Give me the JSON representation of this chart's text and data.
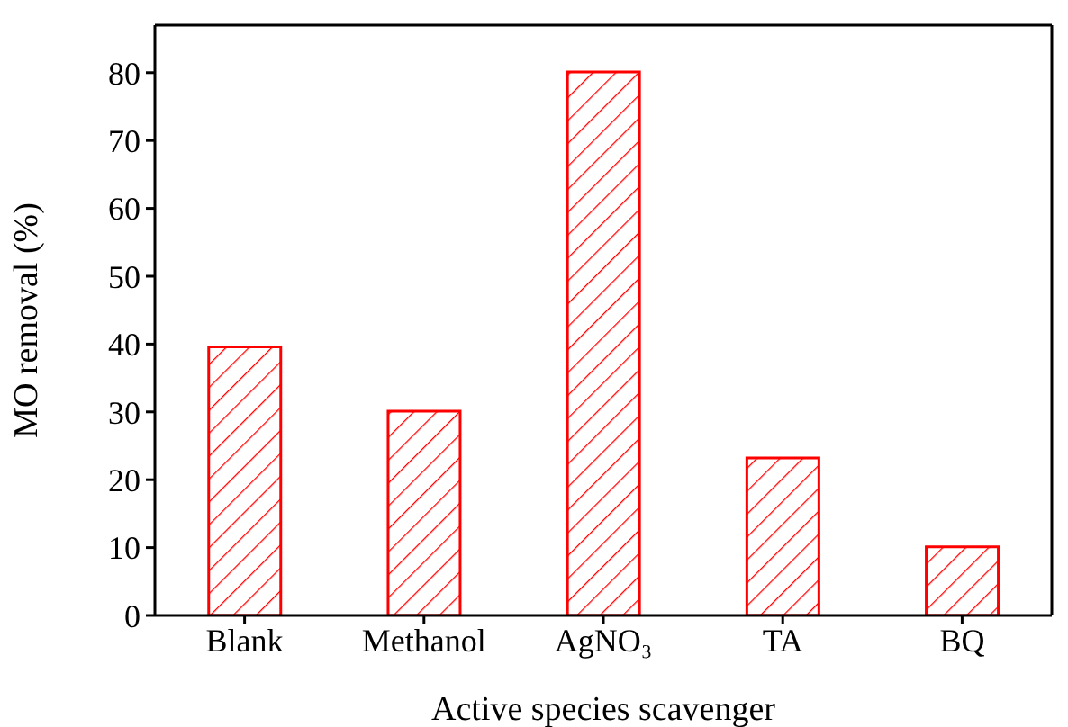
{
  "chart_data": {
    "type": "bar",
    "xlabel": "Active species scavenger",
    "ylabel": "MO removal (%)",
    "categories": [
      "Blank",
      "Methanol",
      "AgNO₃",
      "TA",
      "BQ"
    ],
    "values": [
      39.6,
      30.1,
      80.1,
      23.2,
      10.1
    ],
    "color": "#ff0000",
    "ylim": [
      0,
      87
    ],
    "yticks": [
      0,
      10,
      20,
      30,
      40,
      50,
      60,
      70,
      80
    ],
    "grid": false,
    "legend": false
  }
}
